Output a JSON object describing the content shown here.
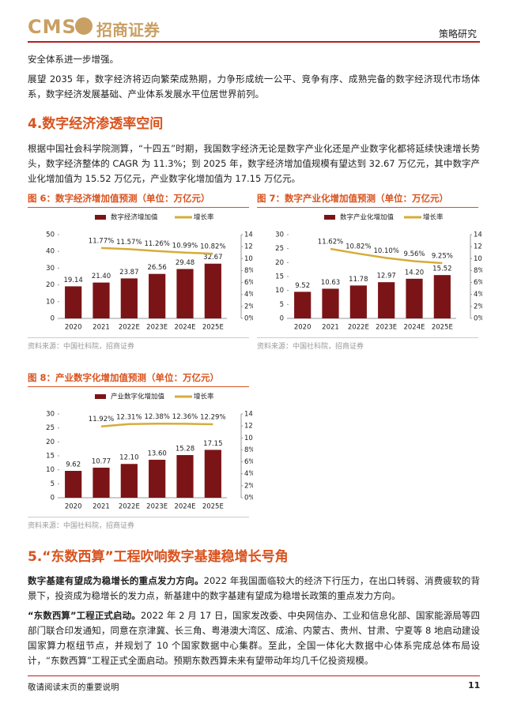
{
  "header": {
    "logo": "CMS",
    "company": "招商证券",
    "section": "策略研究"
  },
  "paragraphs": [
    {
      "text": "安全体系进一步增强。"
    },
    {
      "text": "展望 2035 年，数字经济将迈向繁荣成熟期，力争形成统一公平、竞争有序、成熟完备的数字经济现代市场体系，数字经济发展基础、产业体系发展水平位居世界前列。"
    }
  ],
  "heading_4": "4.数字经济渗透率空间",
  "paragraph_4": "根据中国社会科学院测算，“十四五”时期，我国数字经济无论是数字产业化还是产业数字化都将延续快速增长势头，数字经济整体的 CAGR 为 11.3%；到 2025 年，数字经济增加值规模有望达到 32.67 万亿元，其中数字产业化增加值为 15.52 万亿元，产业数字化增加值为 17.15 万亿元。",
  "chart_data": [
    {
      "type": "bar_line",
      "title": "图 6：数字经济增加值预测（单位：万亿元）",
      "source": "资料来源：中国社科院，招商证券",
      "categories": [
        "2020",
        "2021",
        "2022E",
        "2023E",
        "2024E",
        "2025E"
      ],
      "series": [
        {
          "name": "数字经济增加值",
          "type": "bar",
          "color": "#7b1416",
          "values": [
            19.14,
            21.4,
            23.87,
            26.56,
            29.48,
            32.67
          ],
          "value_labels": [
            "19.14",
            "21.40",
            "23.87",
            "26.56",
            "29.48",
            "32.67"
          ]
        },
        {
          "name": "增长率",
          "type": "line",
          "axis": "y2",
          "color": "#d6ac3a",
          "values": [
            null,
            11.77,
            11.57,
            11.26,
            10.99,
            10.82
          ],
          "value_labels": [
            null,
            "11.77%",
            "11.57%",
            "11.26%",
            "10.99%",
            "10.82%"
          ]
        }
      ],
      "ylim": [
        0,
        50
      ],
      "yticks": [
        0,
        10,
        20,
        30,
        40,
        50
      ],
      "y2lim": [
        0,
        14
      ],
      "y2ticks": [
        {
          "value": 0,
          "label": "0%"
        },
        {
          "value": 2,
          "label": "2%"
        },
        {
          "value": 4,
          "label": "4%"
        },
        {
          "value": 6,
          "label": "6%"
        },
        {
          "value": 8,
          "label": "8%"
        },
        {
          "value": 10,
          "label": "10%"
        },
        {
          "value": 12,
          "label": "12%"
        },
        {
          "value": 14,
          "label": "14%"
        }
      ]
    },
    {
      "type": "bar_line",
      "title": "图 7：数字产业化增加值预测（单位：万亿元）",
      "source": "资料来源：中国社科院，招商证券",
      "categories": [
        "2020",
        "2021",
        "2022E",
        "2023E",
        "2024E",
        "2025E"
      ],
      "series": [
        {
          "name": "数字产业化增加值",
          "type": "bar",
          "color": "#7b1416",
          "values": [
            9.52,
            10.63,
            11.78,
            12.97,
            14.2,
            15.52
          ],
          "value_labels": [
            "9.52",
            "10.63",
            "11.78",
            "12.97",
            "14.20",
            "15.52"
          ]
        },
        {
          "name": "增长率",
          "type": "line",
          "axis": "y2",
          "color": "#d6ac3a",
          "values": [
            null,
            11.62,
            10.82,
            10.1,
            9.56,
            9.25
          ],
          "value_labels": [
            null,
            "11.62%",
            "10.82%",
            "10.10%",
            "9.56%",
            "9.25%"
          ]
        }
      ],
      "ylim": [
        0,
        30
      ],
      "yticks": [
        0,
        5,
        10,
        15,
        20,
        25,
        30
      ],
      "y2lim": [
        0,
        14
      ],
      "y2ticks": [
        {
          "value": 0,
          "label": "0%"
        },
        {
          "value": 2,
          "label": "2%"
        },
        {
          "value": 4,
          "label": "4%"
        },
        {
          "value": 6,
          "label": "6%"
        },
        {
          "value": 8,
          "label": "8%"
        },
        {
          "value": 10,
          "label": "10%"
        },
        {
          "value": 12,
          "label": "12%"
        },
        {
          "value": 14,
          "label": "14%"
        }
      ]
    },
    {
      "type": "bar_line",
      "title": "图 8：产业数字化增加值预测（单位：万亿元）",
      "source": "资料来源：中国社科院，招商证券",
      "categories": [
        "2020",
        "2021",
        "2022E",
        "2023E",
        "2024E",
        "2025E"
      ],
      "series": [
        {
          "name": "产业数字化增加值",
          "type": "bar",
          "color": "#7b1416",
          "values": [
            9.62,
            10.77,
            12.1,
            13.6,
            15.28,
            17.15
          ],
          "value_labels": [
            "9.62",
            "10.77",
            "12.10",
            "13.60",
            "15.28",
            "17.15"
          ]
        },
        {
          "name": "增长率",
          "type": "line",
          "axis": "y2",
          "color": "#d6ac3a",
          "values": [
            null,
            11.92,
            12.31,
            12.38,
            12.36,
            12.29
          ],
          "value_labels": [
            null,
            "11.92%",
            "12.31%",
            "12.38%",
            "12.36%",
            "12.29%"
          ]
        }
      ],
      "ylim": [
        0,
        30
      ],
      "yticks": [
        0,
        5,
        10,
        15,
        20,
        25,
        30
      ],
      "y2lim": [
        0,
        14
      ],
      "y2ticks": [
        {
          "value": 0,
          "label": "0%"
        },
        {
          "value": 2,
          "label": "2%"
        },
        {
          "value": 4,
          "label": "4%"
        },
        {
          "value": 6,
          "label": "6%"
        },
        {
          "value": 8,
          "label": "8%"
        },
        {
          "value": 10,
          "label": "10%"
        },
        {
          "value": 12,
          "label": "12%"
        },
        {
          "value": 14,
          "label": "14%"
        }
      ]
    }
  ],
  "heading_5": "5.“东数西算”工程吹响数字基建稳增长号角",
  "paragraphs_5": [
    {
      "lead": "数字基建有望成为稳增长的重点发力方向。",
      "text": "2022 年我国面临较大的经济下行压力，在出口转弱、消费疲软的背景下，投资成为稳增长的发力点，新基建中的数字基建有望成为稳增长政策的重点发力方向。"
    },
    {
      "lead": "“东数西算”工程正式启动。",
      "text": "2022 年 2 月 17 日，国家发改委、中央网信办、工业和信息化部、国家能源局等四部门联合印发通知，同意在京津冀、长三角、粤港澳大湾区、成渝、内蒙古、贵州、甘肃、宁夏等 8 地启动建设国家算力枢纽节点，并规划了 10 个国家数据中心集群。至此，全国一体化大数据中心体系完成总体布局设计，“东数西算”工程正式全面启动。预期东数西算未来有望带动年均几千亿投资规模。"
    }
  ],
  "footer": {
    "note": "敬请阅读末页的重要说明",
    "page": "11"
  }
}
